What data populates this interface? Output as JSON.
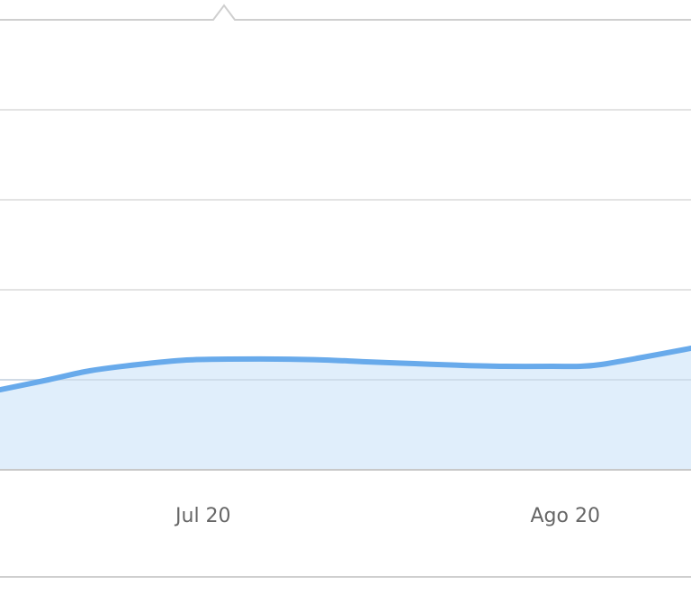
{
  "chart_data": {
    "type": "area",
    "x_ticks": [
      "Jul 20",
      "Ago 20"
    ],
    "ylim": [
      0,
      5
    ],
    "grid": true,
    "colors": {
      "line": "#68aaeb",
      "fill": "#e0eefb"
    },
    "series": [
      {
        "x": [
          0,
          0.07,
          0.13,
          0.2,
          0.27,
          0.33,
          0.4,
          0.47,
          0.53,
          0.6,
          0.67,
          0.73,
          0.8,
          0.84,
          0.87,
          0.93,
          1.0
        ],
        "values": [
          0.89,
          1.0,
          1.1,
          1.17,
          1.22,
          1.23,
          1.23,
          1.22,
          1.2,
          1.18,
          1.16,
          1.15,
          1.15,
          1.15,
          1.17,
          1.25,
          1.35
        ]
      }
    ]
  }
}
